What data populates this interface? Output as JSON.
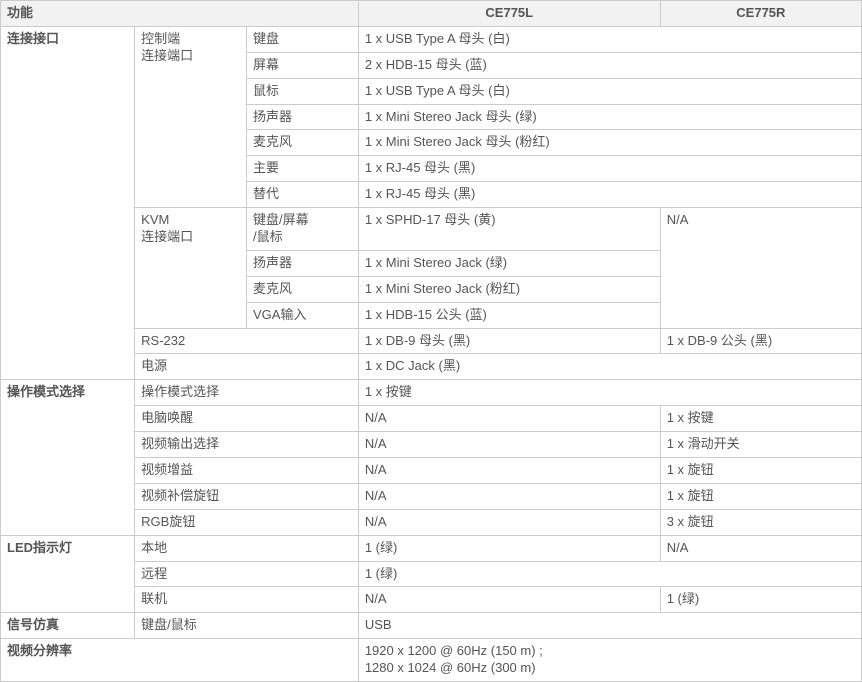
{
  "header": {
    "func": "功能",
    "colL": "CE775L",
    "colR": "CE775R"
  },
  "conn": {
    "group": "连接接口",
    "ctrl": {
      "label": "控制端\n连接端口",
      "rows": [
        {
          "k": "键盘",
          "l": "1 x USB Type A 母头 (白)"
        },
        {
          "k": "屏幕",
          "l": "2 x HDB-15 母头 (蓝)"
        },
        {
          "k": "鼠标",
          "l": "1 x USB Type A 母头 (白)"
        },
        {
          "k": "扬声器",
          "l": "1 x Mini Stereo Jack 母头 (绿)"
        },
        {
          "k": "麦克风",
          "l": "1 x Mini Stereo Jack 母头 (粉红)"
        },
        {
          "k": "主要",
          "l": "1 x RJ-45 母头 (黑)"
        },
        {
          "k": "替代",
          "l": "1 x RJ-45 母头 (黑)"
        }
      ]
    },
    "kvm": {
      "label": "KVM\n连接端口",
      "na": "N/A",
      "rows": [
        {
          "k": "键盘/屏幕\n/鼠标",
          "l": "1 x SPHD-17 母头 (黄)"
        },
        {
          "k": "扬声器",
          "l": "1 x Mini Stereo Jack (绿)"
        },
        {
          "k": "麦克风",
          "l": "1 x Mini Stereo Jack (粉红)"
        },
        {
          "k": "VGA输入",
          "l": "1 x HDB-15 公头 (蓝)"
        }
      ]
    },
    "rs232": {
      "k": "RS-232",
      "l": "1 x DB-9 母头 (黑)",
      "r": "1 x DB-9 公头 (黑)"
    },
    "power": {
      "k": "电源",
      "l": "1 x DC Jack (黑)"
    }
  },
  "mode": {
    "group": "操作模式选择",
    "rows": [
      {
        "k": "操作模式选择",
        "l": "1 x 按键",
        "span": true
      },
      {
        "k": "电脑唤醒",
        "l": "N/A",
        "r": "1 x 按键"
      },
      {
        "k": "视频输出选择",
        "l": "N/A",
        "r": "1 x 滑动开关"
      },
      {
        "k": "视频增益",
        "l": "N/A",
        "r": "1 x 旋钮"
      },
      {
        "k": "视频补偿旋钮",
        "l": "N/A",
        "r": "1 x 旋钮"
      },
      {
        "k": "RGB旋钮",
        "l": "N/A",
        "r": "3 x 旋钮"
      }
    ]
  },
  "led": {
    "group": "LED指示灯",
    "rows": [
      {
        "k": "本地",
        "l": "1 (绿)",
        "r": "N/A"
      },
      {
        "k": "远程",
        "l": "1 (绿)",
        "span": true
      },
      {
        "k": "联机",
        "l": "N/A",
        "r": "1 (绿)"
      }
    ]
  },
  "emul": {
    "group": "信号仿真",
    "k": "键盘/鼠标",
    "l": "USB"
  },
  "res": {
    "group": "视频分辨率",
    "l": "1920 x 1200 @ 60Hz (150 m) ;\n1280 x 1024 @ 60Hz (300 m)"
  }
}
